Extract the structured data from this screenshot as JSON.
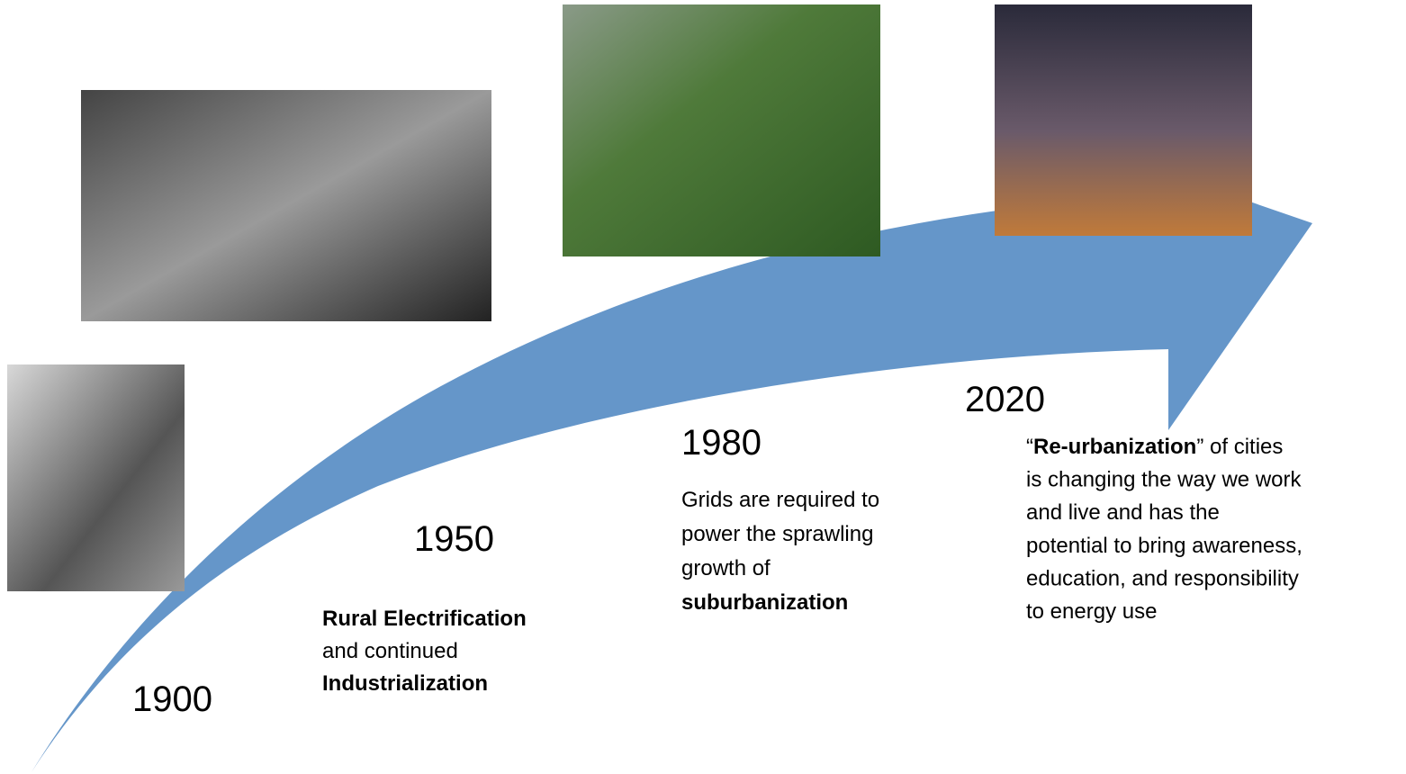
{
  "milestones": [
    {
      "year": "1900",
      "lines": []
    },
    {
      "year": "1950",
      "lines": [
        [
          {
            "text": "Rural Electrification",
            "bold": true
          }
        ],
        [
          {
            "text": "and continued",
            "bold": false
          }
        ],
        [
          {
            "text": "Industrialization",
            "bold": true
          }
        ]
      ]
    },
    {
      "year": "1980",
      "lines": [
        [
          {
            "text": "Grids are required to",
            "bold": false
          }
        ],
        [
          {
            "text": "power the sprawling",
            "bold": false
          }
        ],
        [
          {
            "text": "growth of",
            "bold": false
          }
        ],
        [
          {
            "text": "suburbanization",
            "bold": true
          }
        ]
      ]
    },
    {
      "year": "2020",
      "lines": [
        [
          {
            "text": "“",
            "bold": false
          },
          {
            "text": "Re-urbanization",
            "bold": true
          },
          {
            "text": "” of cities",
            "bold": false
          }
        ],
        [
          {
            "text": "is changing the way we work",
            "bold": false
          }
        ],
        [
          {
            "text": "and live and has the",
            "bold": false
          }
        ],
        [
          {
            "text": "potential to bring awareness,",
            "bold": false
          }
        ],
        [
          {
            "text": "education, and responsibility",
            "bold": false
          }
        ],
        [
          {
            "text": "to energy use",
            "bold": false
          }
        ]
      ]
    }
  ]
}
